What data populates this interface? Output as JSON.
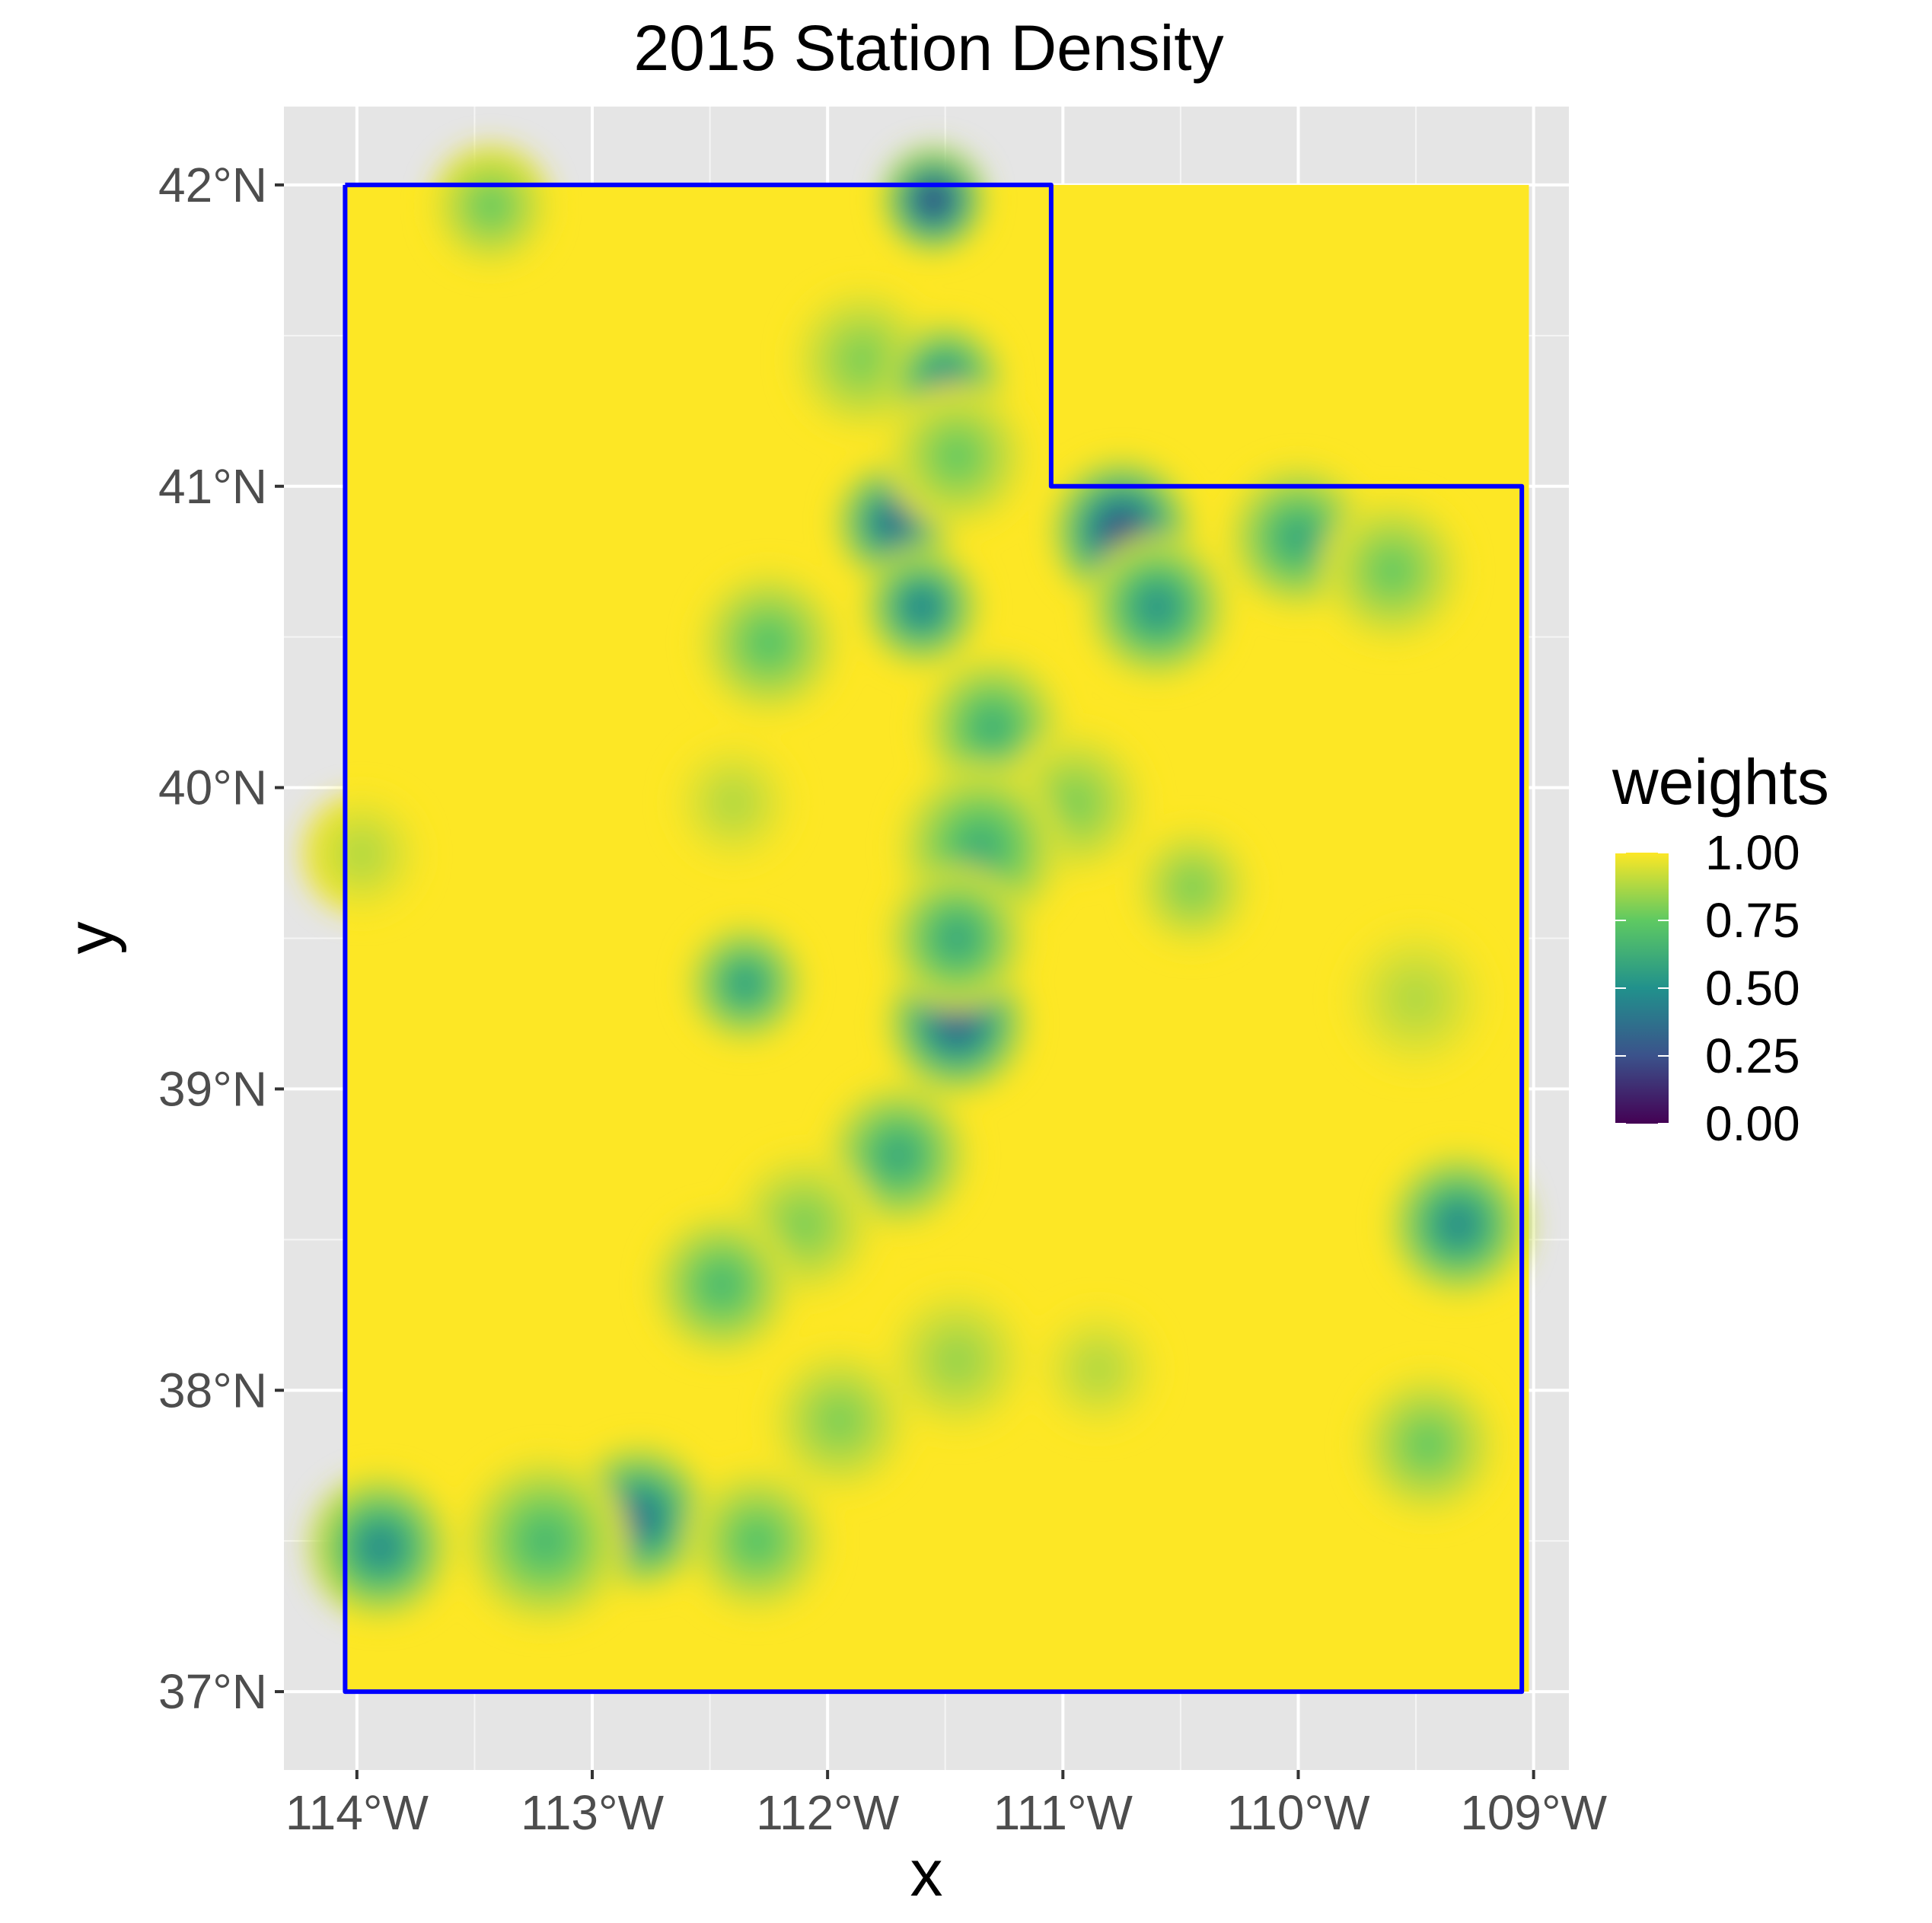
{
  "chart_data": {
    "type": "heatmap",
    "title": "2015 Station Density",
    "xlabel": "x",
    "ylabel": "y",
    "xlim": [
      -114.31,
      -108.85
    ],
    "ylim": [
      36.74,
      42.26
    ],
    "x_ticks": [
      {
        "value": -114,
        "label": "114°W"
      },
      {
        "value": -113,
        "label": "113°W"
      },
      {
        "value": -112,
        "label": "112°W"
      },
      {
        "value": -111,
        "label": "111°W"
      },
      {
        "value": -110,
        "label": "110°W"
      },
      {
        "value": -109,
        "label": "109°W"
      }
    ],
    "y_ticks": [
      {
        "value": 37,
        "label": "37°N"
      },
      {
        "value": 38,
        "label": "38°N"
      },
      {
        "value": 39,
        "label": "39°N"
      },
      {
        "value": 40,
        "label": "40°N"
      },
      {
        "value": 41,
        "label": "41°N"
      },
      {
        "value": 42,
        "label": "42°N"
      }
    ],
    "grid": true,
    "panel_background": "#e5e5e5",
    "boundary_color": "#0000ff",
    "boundary": [
      [
        -114.05,
        42.0
      ],
      [
        -111.05,
        42.0
      ],
      [
        -111.05,
        41.0
      ],
      [
        -109.05,
        41.0
      ],
      [
        -109.05,
        37.0
      ],
      [
        -114.05,
        37.0
      ],
      [
        -114.05,
        42.0
      ]
    ],
    "raster_extent": {
      "lon": [
        -114.05,
        -109.02
      ],
      "lat": [
        37.0,
        42.0
      ]
    },
    "raster_fill_value": 1.0,
    "raster_cutouts": [
      {
        "lon": [
          -113.96,
          -111.9
        ],
        "lat": [
          37.4,
          37.7
        ],
        "note": "weighted area"
      }
    ],
    "density_blobs": [
      {
        "lon": -113.43,
        "lat": 41.93,
        "min_weight": 0.7,
        "radius_deg": 0.25
      },
      {
        "lon": -111.55,
        "lat": 41.95,
        "min_weight": 0.0,
        "radius_deg": 0.22
      },
      {
        "lon": -111.85,
        "lat": 41.42,
        "min_weight": 0.75,
        "radius_deg": 0.3
      },
      {
        "lon": -111.5,
        "lat": 41.35,
        "min_weight": 0.35,
        "radius_deg": 0.25
      },
      {
        "lon": -111.72,
        "lat": 40.88,
        "min_weight": 0.2,
        "radius_deg": 0.25
      },
      {
        "lon": -111.6,
        "lat": 40.6,
        "min_weight": 0.3,
        "radius_deg": 0.25
      },
      {
        "lon": -111.45,
        "lat": 41.1,
        "min_weight": 0.7,
        "radius_deg": 0.3
      },
      {
        "lon": -110.75,
        "lat": 40.85,
        "min_weight": 0.05,
        "radius_deg": 0.3
      },
      {
        "lon": -110.6,
        "lat": 40.6,
        "min_weight": 0.4,
        "radius_deg": 0.3
      },
      {
        "lon": -110.0,
        "lat": 40.83,
        "min_weight": 0.5,
        "radius_deg": 0.3
      },
      {
        "lon": -109.6,
        "lat": 40.72,
        "min_weight": 0.7,
        "radius_deg": 0.3
      },
      {
        "lon": -112.25,
        "lat": 40.48,
        "min_weight": 0.65,
        "radius_deg": 0.3
      },
      {
        "lon": -111.3,
        "lat": 40.2,
        "min_weight": 0.55,
        "radius_deg": 0.3
      },
      {
        "lon": -110.95,
        "lat": 39.95,
        "min_weight": 0.75,
        "radius_deg": 0.3
      },
      {
        "lon": -111.35,
        "lat": 39.8,
        "min_weight": 0.55,
        "radius_deg": 0.35
      },
      {
        "lon": -112.4,
        "lat": 39.95,
        "min_weight": 0.85,
        "radius_deg": 0.25
      },
      {
        "lon": -110.45,
        "lat": 39.67,
        "min_weight": 0.75,
        "radius_deg": 0.25
      },
      {
        "lon": -113.98,
        "lat": 39.78,
        "min_weight": 0.85,
        "radius_deg": 0.25
      },
      {
        "lon": -112.35,
        "lat": 39.35,
        "min_weight": 0.45,
        "radius_deg": 0.25
      },
      {
        "lon": -111.45,
        "lat": 39.22,
        "min_weight": 0.15,
        "radius_deg": 0.3
      },
      {
        "lon": -111.45,
        "lat": 39.5,
        "min_weight": 0.5,
        "radius_deg": 0.3
      },
      {
        "lon": -109.5,
        "lat": 39.3,
        "min_weight": 0.85,
        "radius_deg": 0.3
      },
      {
        "lon": -111.7,
        "lat": 38.78,
        "min_weight": 0.5,
        "radius_deg": 0.3
      },
      {
        "lon": -112.1,
        "lat": 38.55,
        "min_weight": 0.75,
        "radius_deg": 0.3
      },
      {
        "lon": -112.45,
        "lat": 38.35,
        "min_weight": 0.6,
        "radius_deg": 0.3
      },
      {
        "lon": -109.32,
        "lat": 38.55,
        "min_weight": 0.35,
        "radius_deg": 0.3
      },
      {
        "lon": -111.45,
        "lat": 38.1,
        "min_weight": 0.8,
        "radius_deg": 0.3
      },
      {
        "lon": -110.85,
        "lat": 38.07,
        "min_weight": 0.85,
        "radius_deg": 0.25
      },
      {
        "lon": -111.95,
        "lat": 37.9,
        "min_weight": 0.75,
        "radius_deg": 0.3
      },
      {
        "lon": -109.45,
        "lat": 37.82,
        "min_weight": 0.7,
        "radius_deg": 0.3
      },
      {
        "lon": -112.8,
        "lat": 37.58,
        "min_weight": 0.25,
        "radius_deg": 0.3
      },
      {
        "lon": -113.2,
        "lat": 37.5,
        "min_weight": 0.6,
        "radius_deg": 0.35
      },
      {
        "lon": -113.9,
        "lat": 37.48,
        "min_weight": 0.35,
        "radius_deg": 0.3
      },
      {
        "lon": -112.3,
        "lat": 37.5,
        "min_weight": 0.65,
        "radius_deg": 0.3
      }
    ],
    "legend": {
      "title": "weights",
      "position": "right",
      "colormap": "viridis",
      "colors": [
        "#440154",
        "#3b528b",
        "#21918c",
        "#5ec962",
        "#fde725"
      ],
      "range": [
        0,
        1
      ],
      "ticks": [
        {
          "value": 1.0,
          "label": "1.00"
        },
        {
          "value": 0.75,
          "label": "0.75"
        },
        {
          "value": 0.5,
          "label": "0.50"
        },
        {
          "value": 0.25,
          "label": "0.25"
        },
        {
          "value": 0.0,
          "label": "0.00"
        }
      ]
    }
  }
}
